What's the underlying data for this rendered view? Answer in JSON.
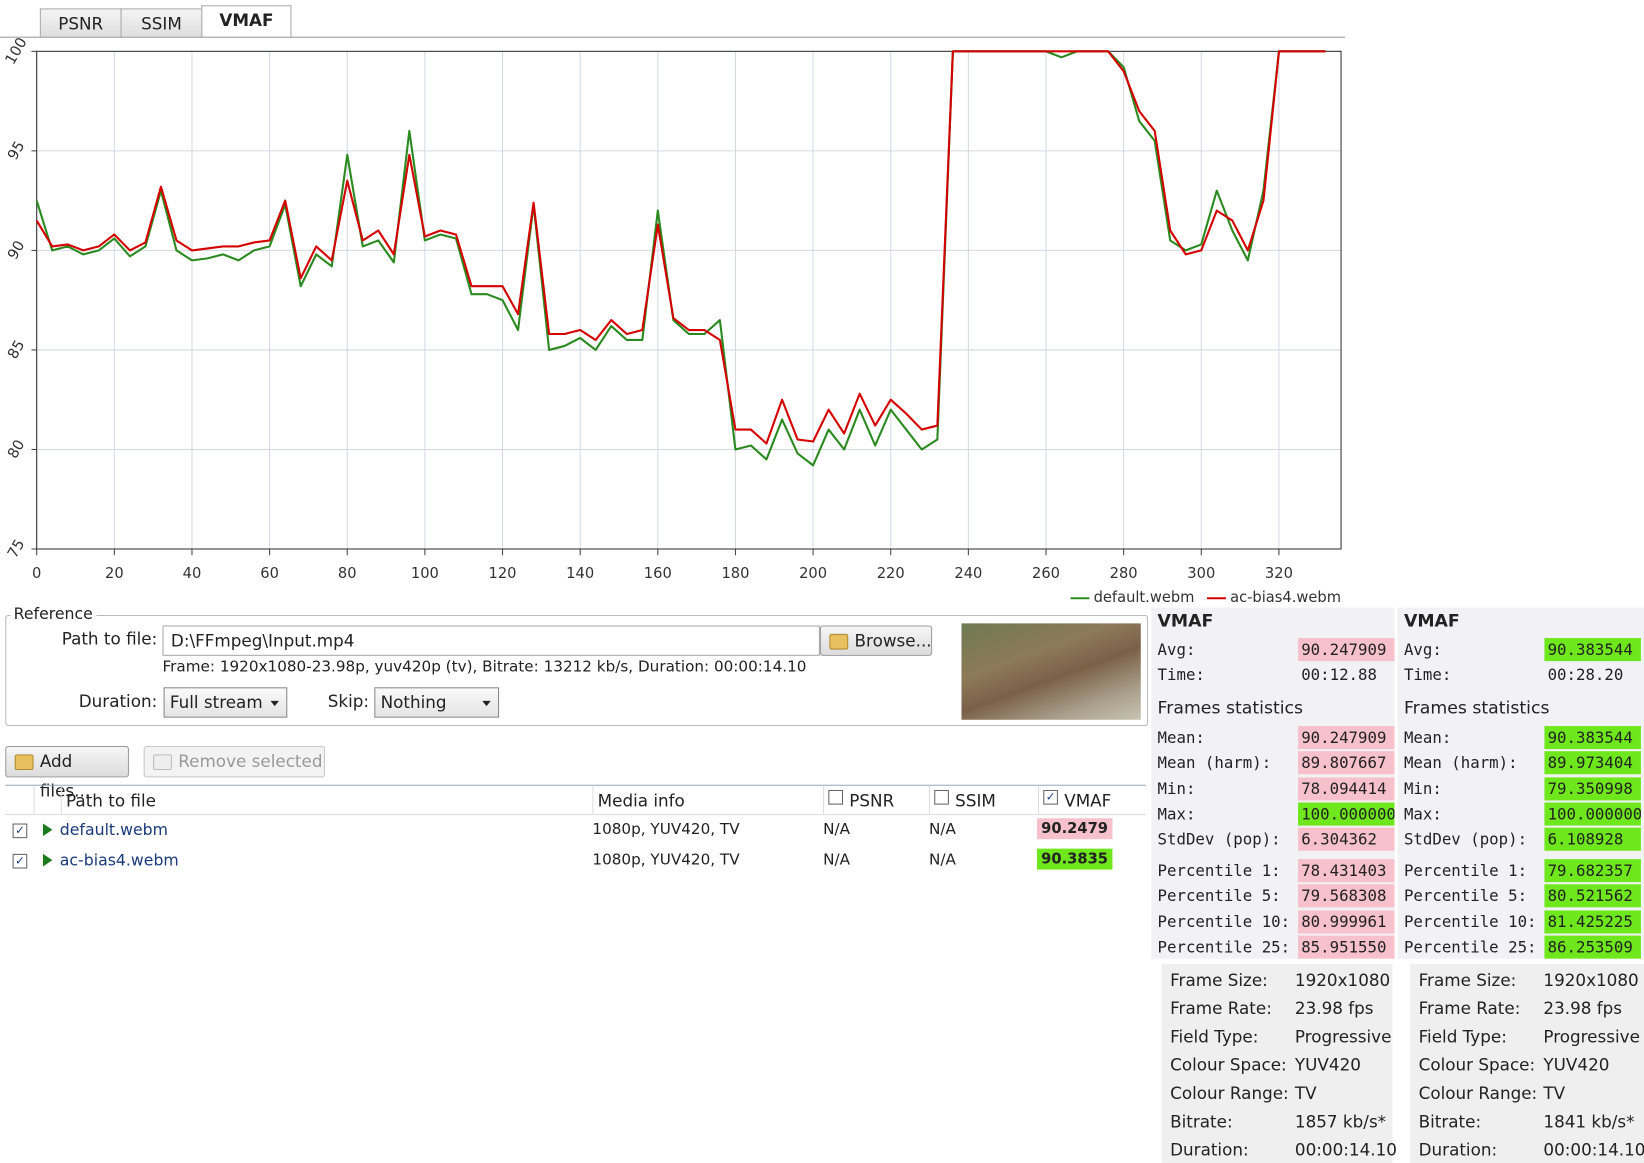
{
  "tabs": [
    "PSNR",
    "SSIM",
    "VMAF"
  ],
  "active_tab": 2,
  "chart_data": {
    "type": "line",
    "x": [
      0,
      4,
      8,
      12,
      16,
      20,
      24,
      28,
      32,
      36,
      40,
      44,
      48,
      52,
      56,
      60,
      64,
      68,
      72,
      76,
      80,
      84,
      88,
      92,
      96,
      100,
      104,
      108,
      112,
      116,
      120,
      124,
      128,
      132,
      136,
      140,
      144,
      148,
      152,
      156,
      160,
      164,
      168,
      172,
      176,
      180,
      184,
      188,
      192,
      196,
      200,
      204,
      208,
      212,
      216,
      220,
      224,
      228,
      232,
      236,
      240,
      244,
      248,
      252,
      256,
      260,
      264,
      268,
      272,
      276,
      280,
      284,
      288,
      292,
      296,
      300,
      304,
      308,
      312,
      316,
      320,
      324,
      328,
      332
    ],
    "series": [
      {
        "name": "default.webm",
        "color": "#2a8a1f",
        "values": [
          92.5,
          90,
          90.2,
          89.8,
          90,
          90.6,
          89.7,
          90.2,
          93,
          90,
          89.5,
          89.6,
          89.8,
          89.5,
          90,
          90.2,
          92.3,
          88.2,
          89.8,
          89.2,
          94.8,
          90.2,
          90.5,
          89.4,
          96,
          90.5,
          90.8,
          90.6,
          87.8,
          87.8,
          87.5,
          86,
          92.3,
          85,
          85.2,
          85.6,
          85,
          86.2,
          85.5,
          85.5,
          92,
          86.5,
          85.8,
          85.8,
          86.5,
          80,
          80.2,
          79.5,
          81.5,
          79.8,
          79.2,
          81,
          80,
          82,
          80.2,
          82,
          81,
          80,
          80.5,
          100,
          100,
          100,
          100,
          100,
          100,
          100,
          99.7,
          100,
          100,
          100,
          99.2,
          96.5,
          95.5,
          90.5,
          90,
          90.3,
          93,
          91,
          89.5,
          93,
          100,
          100,
          100,
          100
        ]
      },
      {
        "name": "ac-bias4.webm",
        "color": "#d40000",
        "values": [
          91.5,
          90.2,
          90.3,
          90,
          90.2,
          90.8,
          90,
          90.4,
          93.2,
          90.5,
          90,
          90.1,
          90.2,
          90.2,
          90.4,
          90.5,
          92.5,
          88.6,
          90.2,
          89.5,
          93.5,
          90.5,
          91,
          89.8,
          94.8,
          90.7,
          91,
          90.8,
          88.2,
          88.2,
          88.2,
          86.8,
          92.4,
          85.8,
          85.8,
          86,
          85.5,
          86.5,
          85.8,
          86,
          91.3,
          86.6,
          86,
          86,
          85.5,
          81,
          81,
          80.3,
          82.5,
          80.5,
          80.4,
          82,
          80.8,
          82.8,
          81.2,
          82.5,
          81.8,
          81,
          81.2,
          100,
          100,
          100,
          100,
          100,
          100,
          100,
          100,
          100,
          100,
          100,
          99,
          97,
          96,
          91,
          89.8,
          90,
          92,
          91.5,
          90,
          92.5,
          100,
          100,
          100,
          100
        ]
      }
    ],
    "xlim": [
      0,
      336
    ],
    "ylim": [
      75,
      100
    ],
    "xticks": [
      0,
      20,
      40,
      60,
      80,
      100,
      120,
      140,
      160,
      180,
      200,
      220,
      240,
      260,
      280,
      300,
      320
    ],
    "yticks": [
      75,
      80,
      85,
      90,
      95,
      100
    ],
    "grid": true,
    "legend": "bottom-right"
  },
  "reference": {
    "title": "Reference",
    "path_label": "Path to file:",
    "path": "D:\\FFmpeg\\Input.mp4",
    "browse": "Browse...",
    "info": "Frame: 1920x1080-23.98p, yuv420p (tv), Bitrate: 13212 kb/s, Duration: 00:00:14.10",
    "duration_label": "Duration:",
    "duration": "Full stream",
    "skip_label": "Skip:",
    "skip": "Nothing"
  },
  "buttons": {
    "add": "Add files...",
    "remove": "Remove selected"
  },
  "file_table": {
    "headers": [
      "Path to file",
      "Media info",
      "PSNR",
      "SSIM",
      "VMAF"
    ],
    "rows": [
      {
        "file": "default.webm",
        "media": "1080p, YUV420, TV",
        "psnr": "N/A",
        "ssim": "N/A",
        "vmaf": "90.2479",
        "color": "#f7c1cb"
      },
      {
        "file": "ac-bias4.webm",
        "media": "1080p, YUV420, TV",
        "psnr": "N/A",
        "ssim": "N/A",
        "vmaf": "90.3835",
        "color": "#6ee81c"
      }
    ]
  },
  "stats": [
    {
      "title": "VMAF",
      "section": "Frames statistics",
      "top": [
        {
          "label": "Avg:",
          "value": "90.247909",
          "color": "#f7c1cb"
        },
        {
          "label": "Time:",
          "value": "00:12.88"
        }
      ],
      "frames": [
        {
          "label": "Mean:",
          "value": "90.247909",
          "color": "#f7c1cb"
        },
        {
          "label": "Mean (harm):",
          "value": "89.807667",
          "color": "#f7c1cb"
        },
        {
          "label": "Min:",
          "value": "78.094414",
          "color": "#f7c1cb"
        },
        {
          "label": "Max:",
          "value": "100.000000",
          "color": "#6ee81c"
        },
        {
          "label": "StdDev (pop):",
          "value": "6.304362",
          "color": "#f7c1cb"
        }
      ],
      "percentiles": [
        {
          "label": "Percentile 1:",
          "value": "78.431403",
          "color": "#f7c1cb"
        },
        {
          "label": "Percentile 5:",
          "value": "79.568308",
          "color": "#f7c1cb"
        },
        {
          "label": "Percentile 10:",
          "value": "80.999961",
          "color": "#f7c1cb"
        },
        {
          "label": "Percentile 25:",
          "value": "85.951550",
          "color": "#f7c1cb"
        }
      ]
    },
    {
      "title": "VMAF",
      "section": "Frames statistics",
      "top": [
        {
          "label": "Avg:",
          "value": "90.383544",
          "color": "#6ee81c"
        },
        {
          "label": "Time:",
          "value": "00:28.20"
        }
      ],
      "frames": [
        {
          "label": "Mean:",
          "value": "90.383544",
          "color": "#6ee81c"
        },
        {
          "label": "Mean (harm):",
          "value": "89.973404",
          "color": "#6ee81c"
        },
        {
          "label": "Min:",
          "value": "79.350998",
          "color": "#6ee81c"
        },
        {
          "label": "Max:",
          "value": "100.000000",
          "color": "#6ee81c"
        },
        {
          "label": "StdDev (pop):",
          "value": "6.108928",
          "color": "#6ee81c"
        }
      ],
      "percentiles": [
        {
          "label": "Percentile 1:",
          "value": "79.682357",
          "color": "#6ee81c"
        },
        {
          "label": "Percentile 5:",
          "value": "80.521562",
          "color": "#6ee81c"
        },
        {
          "label": "Percentile 10:",
          "value": "81.425225",
          "color": "#6ee81c"
        },
        {
          "label": "Percentile 25:",
          "value": "86.253509",
          "color": "#6ee81c"
        }
      ]
    }
  ],
  "info": [
    [
      [
        "Frame Size:",
        "1920x1080"
      ],
      [
        "Frame Rate:",
        "23.98 fps"
      ],
      [
        "Field Type:",
        "Progressive"
      ],
      [
        "Colour Space:",
        "YUV420"
      ],
      [
        "Colour Range:",
        "TV"
      ],
      [
        "Bitrate:",
        "1857 kb/s*"
      ],
      [
        "Duration:",
        "00:00:14.10"
      ]
    ],
    [
      [
        "Frame Size:",
        "1920x1080"
      ],
      [
        "Frame Rate:",
        "23.98 fps"
      ],
      [
        "Field Type:",
        "Progressive"
      ],
      [
        "Colour Space:",
        "YUV420"
      ],
      [
        "Colour Range:",
        "TV"
      ],
      [
        "Bitrate:",
        "1841 kb/s*"
      ],
      [
        "Duration:",
        "00:00:14.10"
      ]
    ]
  ]
}
